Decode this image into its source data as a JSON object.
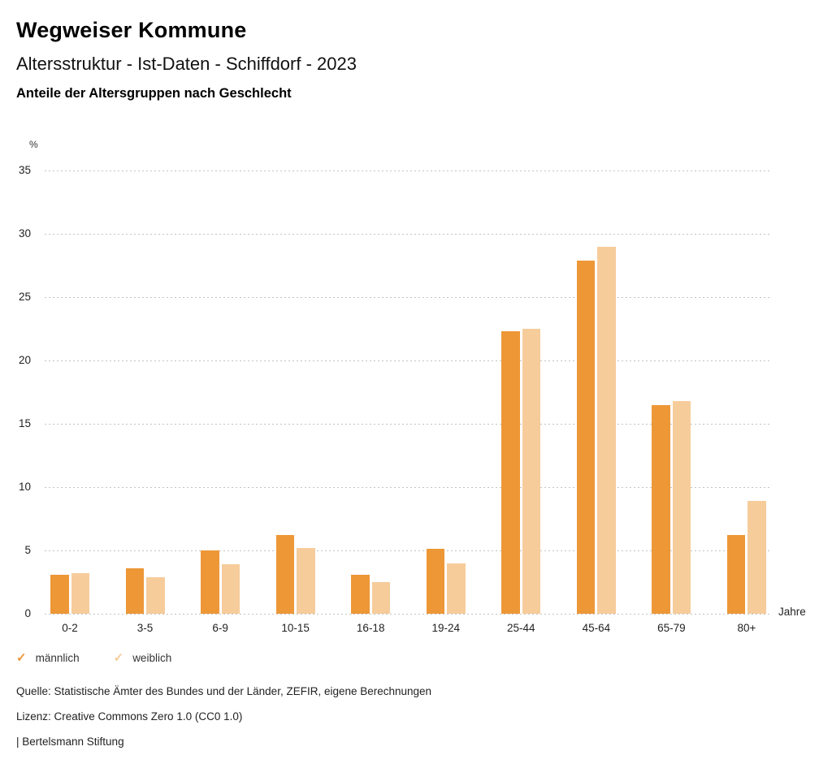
{
  "header": {
    "title": "Wegweiser Kommune",
    "subtitle": "Altersstruktur - Ist-Daten - Schiffdorf - 2023",
    "chart_heading": "Anteile der Altersgruppen nach Geschlecht"
  },
  "chart_data": {
    "type": "bar",
    "title": "Anteile der Altersgruppen nach Geschlecht",
    "unit_label": "%",
    "x_axis_label": "Jahre",
    "categories": [
      "0-2",
      "3-5",
      "6-9",
      "10-15",
      "16-18",
      "19-24",
      "25-44",
      "45-64",
      "65-79",
      "80+"
    ],
    "series": [
      {
        "name": "männlich",
        "color": "#ED9737",
        "values": [
          3.1,
          3.6,
          5.0,
          6.2,
          3.1,
          5.1,
          22.3,
          27.9,
          16.5,
          6.2
        ]
      },
      {
        "name": "weiblich",
        "color": "#F6CC9B",
        "values": [
          3.2,
          2.9,
          3.9,
          5.2,
          2.5,
          4.0,
          22.5,
          29.0,
          16.8,
          8.9
        ]
      }
    ],
    "ylim": [
      0,
      35
    ],
    "yticks": [
      0,
      5,
      10,
      15,
      20,
      25,
      30,
      35
    ],
    "grid": "dotted-horizontal",
    "legend_position": "bottom-left"
  },
  "legend": {
    "check_icon": "✓",
    "items": [
      {
        "label": "männlich",
        "color": "#ED9737"
      },
      {
        "label": "weiblich",
        "color": "#F6CC9B"
      }
    ]
  },
  "footer": {
    "source": "Quelle: Statistische Ämter des Bundes und der Länder, ZEFIR, eigene Berechnungen",
    "license": "Lizenz: Creative Commons Zero 1.0 (CC0 1.0)",
    "attribution": "| Bertelsmann Stiftung"
  }
}
